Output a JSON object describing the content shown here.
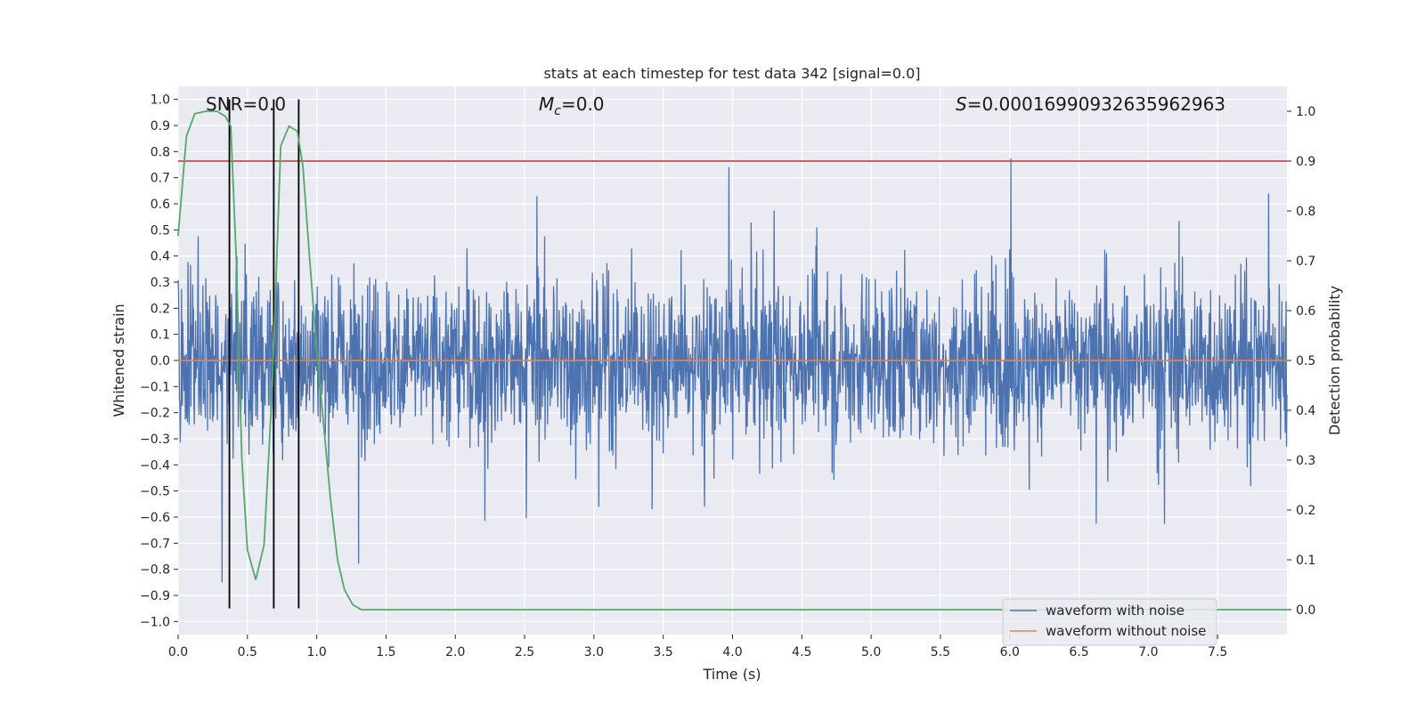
{
  "chart_data": {
    "type": "line",
    "title": "stats at each timestep for test data 342 [signal=0.0]",
    "xlabel": "Time (s)",
    "ylabel": "Whitened strain",
    "y2label": "Detection probability",
    "xlim": [
      0.0,
      8.0
    ],
    "ylim": [
      -1.05,
      1.05
    ],
    "y2lim": [
      -0.05,
      1.05
    ],
    "x_ticks": [
      0.0,
      0.5,
      1.0,
      1.5,
      2.0,
      2.5,
      3.0,
      3.5,
      4.0,
      4.5,
      5.0,
      5.5,
      6.0,
      6.5,
      7.0,
      7.5
    ],
    "x_tick_labels": [
      "0.0",
      "0.5",
      "1.0",
      "1.5",
      "2.0",
      "2.5",
      "3.0",
      "3.5",
      "4.0",
      "4.5",
      "5.0",
      "5.5",
      "6.0",
      "6.5",
      "7.0",
      "7.5"
    ],
    "y_ticks": [
      -1.0,
      -0.9,
      -0.8,
      -0.7,
      -0.6,
      -0.5,
      -0.4,
      -0.3,
      -0.2,
      -0.1,
      0.0,
      0.1,
      0.2,
      0.3,
      0.4,
      0.5,
      0.6,
      0.7,
      0.8,
      0.9,
      1.0
    ],
    "y_tick_labels": [
      "−1.0",
      "−0.9",
      "−0.8",
      "−0.7",
      "−0.6",
      "−0.5",
      "−0.4",
      "−0.3",
      "−0.2",
      "−0.1",
      "0.0",
      "0.1",
      "0.2",
      "0.3",
      "0.4",
      "0.5",
      "0.6",
      "0.7",
      "0.8",
      "0.9",
      "1.0"
    ],
    "y2_ticks": [
      0.0,
      0.1,
      0.2,
      0.3,
      0.4,
      0.5,
      0.6,
      0.7,
      0.8,
      0.9,
      1.0
    ],
    "y2_tick_labels": [
      "0.0",
      "0.1",
      "0.2",
      "0.3",
      "0.4",
      "0.5",
      "0.6",
      "0.7",
      "0.8",
      "0.9",
      "1.0"
    ],
    "grid": true,
    "legend_position": "bottom-right",
    "annotations": {
      "snr": "SNR=0.0",
      "mc_symbol": "M",
      "mc_sub": "c",
      "mc_value": "=0.0",
      "s_symbol": "S",
      "s_value": "=0.00016990932635962963"
    },
    "series": [
      {
        "name": "waveform with noise",
        "color": "#4c72b0",
        "axis": "left",
        "kind": "noise",
        "typical_amplitude": 0.4,
        "peak_max": 1.0,
        "peak_min": -0.94
      },
      {
        "name": "waveform without noise",
        "color": "#dd8452",
        "axis": "left",
        "x": [
          0.0,
          8.0
        ],
        "y": [
          0.0,
          0.0
        ]
      },
      {
        "color": "#55a868",
        "axis": "right",
        "x": [
          0.0,
          0.06,
          0.12,
          0.2,
          0.28,
          0.34,
          0.38,
          0.42,
          0.46,
          0.5,
          0.56,
          0.62,
          0.68,
          0.74,
          0.8,
          0.86,
          0.9,
          0.95,
          1.0,
          1.05,
          1.1,
          1.15,
          1.2,
          1.26,
          1.32,
          8.0
        ],
        "y": [
          0.75,
          0.95,
          0.995,
          1.0,
          1.0,
          0.99,
          0.97,
          0.7,
          0.3,
          0.12,
          0.06,
          0.13,
          0.45,
          0.93,
          0.97,
          0.96,
          0.89,
          0.7,
          0.52,
          0.37,
          0.22,
          0.1,
          0.04,
          0.01,
          0.0,
          0.0
        ]
      },
      {
        "color": "#c44e52",
        "axis": "right",
        "x": [
          0.0,
          8.0
        ],
        "y": [
          0.9,
          0.9
        ]
      }
    ],
    "vertical_lines": [
      {
        "x": 0.37,
        "color": "#000000"
      },
      {
        "x": 0.69,
        "color": "#000000"
      },
      {
        "x": 0.87,
        "color": "#000000"
      }
    ]
  }
}
